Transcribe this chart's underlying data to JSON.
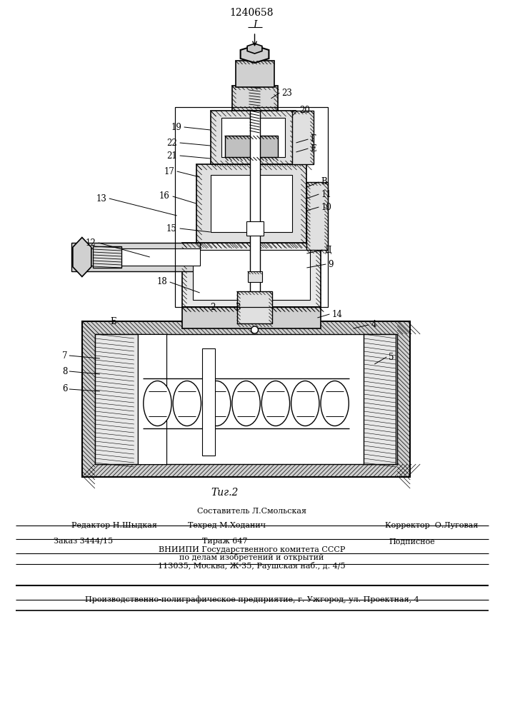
{
  "title": "1240658",
  "fig_label": "Τиг.2",
  "bg_color": "#ffffff",
  "line_color": "#000000",
  "footer": {
    "sestavitel": "Составитель Л.Смольская",
    "redaktor": "Редактор Н.Шыдкая",
    "tehred": "Техред М.Ходанич",
    "korrektor": "Корректор  О.Луговая",
    "zakaz": "Заказ 3444/15",
    "tirazh": "Тираж 647",
    "podpisnoe": "Подписное",
    "vniigi": "ВНИИПИ Государственного комитета СССР",
    "po_delam": "по делам изобретений и открытий",
    "address": "113035, Москва, Ж-35, Раушская наб., д. 4/5",
    "tipografiya": "Производственно-полиграфическое предприятие, г. Ужгород, ул. Проектная, 4"
  }
}
